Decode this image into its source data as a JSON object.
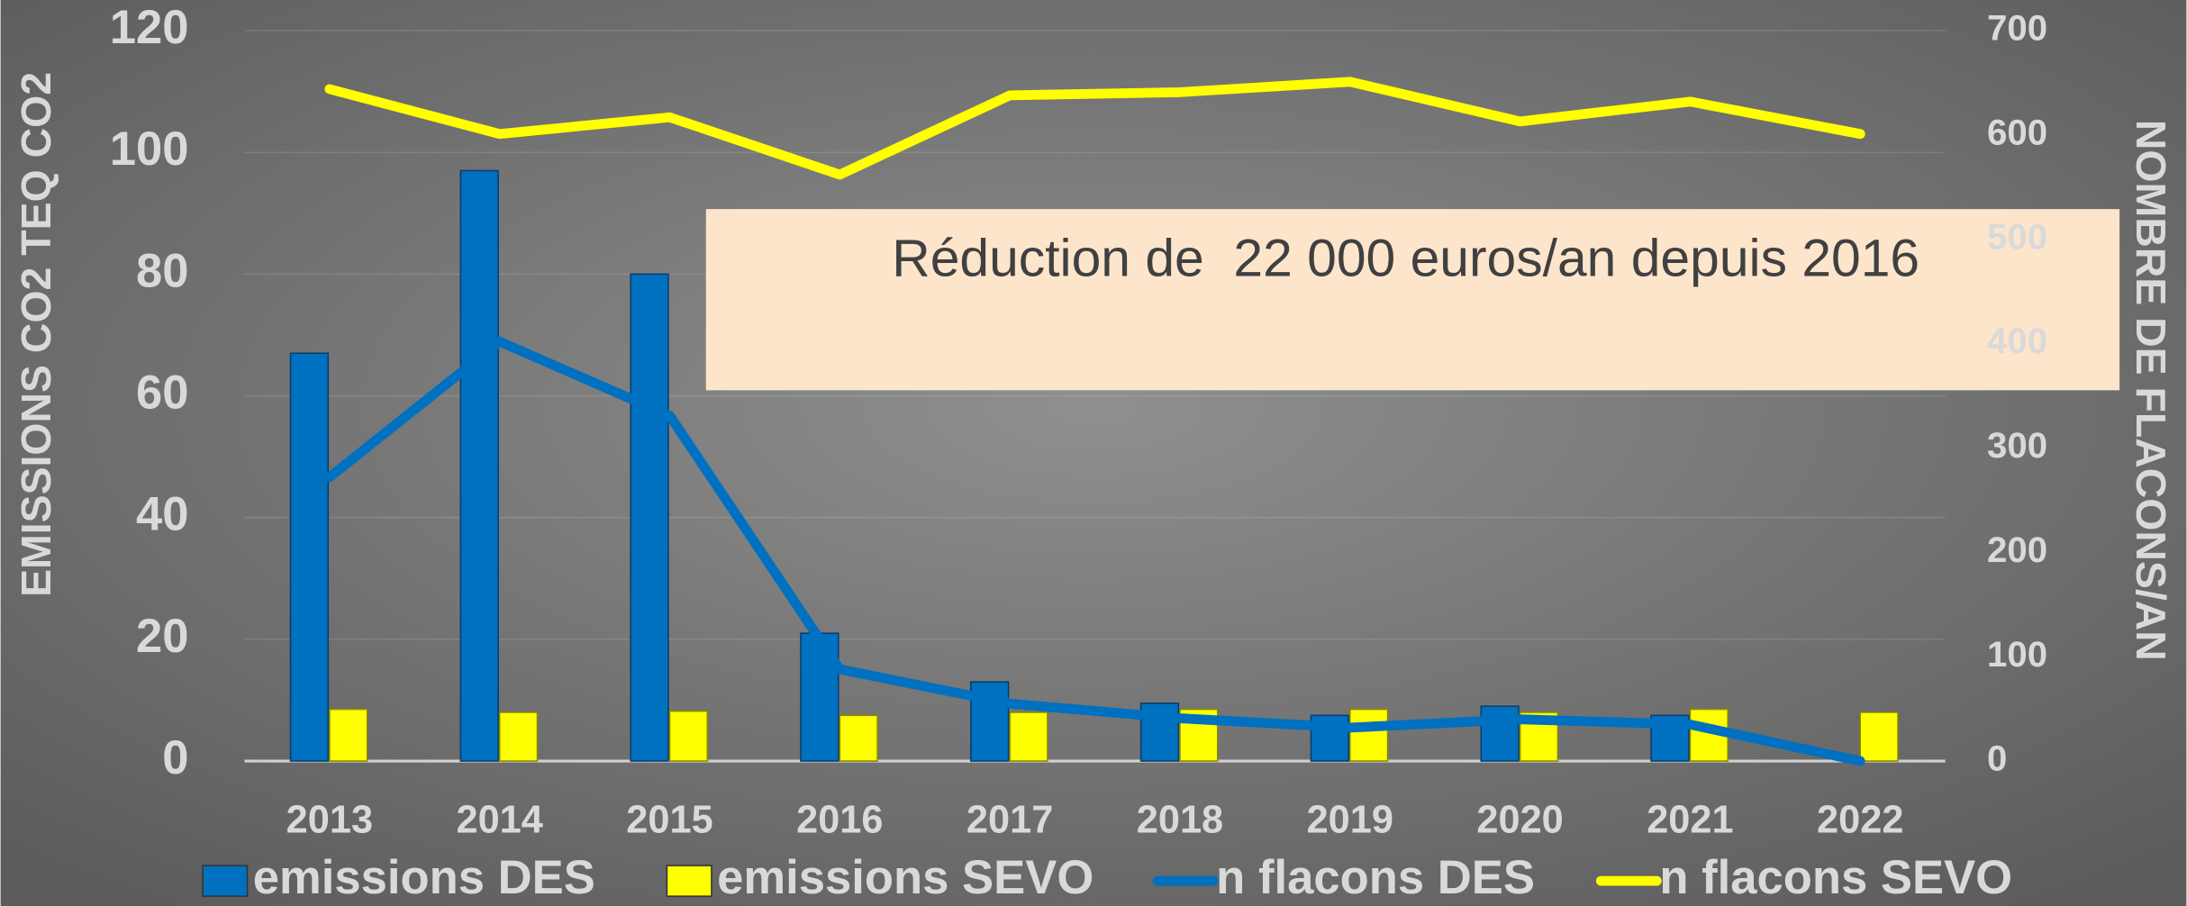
{
  "chart_data": {
    "type": "bar_line",
    "annotation": "Réduction de  22 000 euros/an depuis 2016",
    "ylabel": "EMISSIONS CO2 TEQ CO2",
    "y2label": "NOMBRE DE FLACONS/AN",
    "categories": [
      "2013",
      "2014",
      "2015",
      "2016",
      "2017",
      "2018",
      "2019",
      "2020",
      "2021",
      "2022"
    ],
    "series": [
      {
        "name": "emissions DES",
        "type": "bar",
        "color": "#0070c0",
        "values": [
          67,
          97,
          80,
          21,
          13,
          9.5,
          7.5,
          9,
          7.5,
          0
        ]
      },
      {
        "name": "emissions SEVO",
        "type": "bar",
        "color": "#ffff00",
        "values": [
          8.5,
          8,
          8.2,
          7.5,
          8,
          8.5,
          8.5,
          8,
          8.5,
          8
        ]
      },
      {
        "name": "n flacons DES",
        "type": "line",
        "axis": "y2",
        "color": "#0070c0",
        "values": [
          272,
          402,
          331,
          88,
          55,
          41,
          32,
          40,
          35,
          0
        ]
      },
      {
        "name": "n flacons SEVO",
        "type": "line",
        "axis": "y2",
        "color": "#ffff00",
        "values": [
          644,
          601,
          617,
          562,
          638,
          641,
          651,
          613,
          632,
          601
        ]
      }
    ],
    "ylim": [
      0,
      120
    ],
    "yticks": [
      0,
      20,
      40,
      60,
      80,
      100,
      120
    ],
    "y2lim": [
      0,
      700
    ],
    "y2ticks": [
      0,
      100,
      200,
      300,
      400,
      500,
      600,
      700
    ],
    "grid": true,
    "legend": "bottom"
  }
}
